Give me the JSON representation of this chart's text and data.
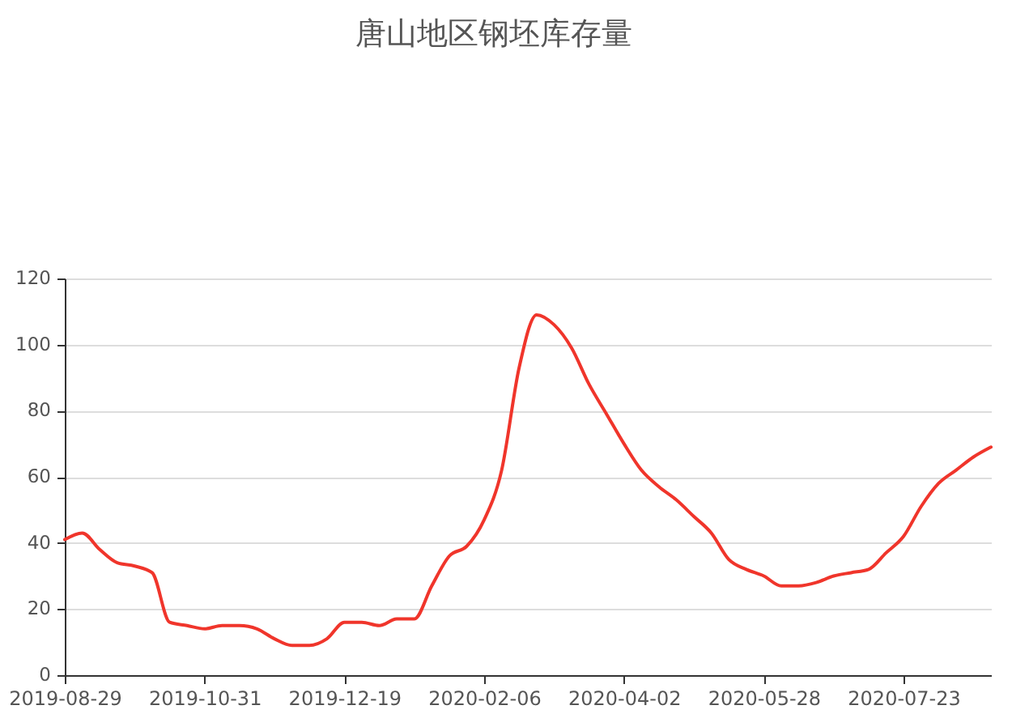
{
  "chart_data": {
    "type": "line",
    "title": "唐山地区钢坯库存量",
    "categories": [
      "2019-08-29",
      null,
      null,
      null,
      null,
      null,
      null,
      null,
      "2019-10-31",
      null,
      null,
      null,
      null,
      null,
      null,
      null,
      "2019-12-19",
      null,
      null,
      null,
      null,
      null,
      null,
      null,
      "2020-02-06",
      null,
      null,
      null,
      null,
      null,
      null,
      null,
      "2020-04-02",
      null,
      null,
      null,
      null,
      null,
      null,
      null,
      "2020-05-28",
      null,
      null,
      null,
      null,
      null,
      null,
      null,
      "2020-07-23",
      null,
      null,
      null,
      null,
      null
    ],
    "series": [
      {
        "color": "#f0352b",
        "values": [
          41,
          43,
          38,
          34,
          33,
          31,
          16,
          15,
          14,
          15,
          15,
          14,
          11,
          9,
          9,
          11,
          16,
          16,
          15,
          17,
          17,
          27,
          36,
          39,
          47,
          62,
          93,
          109,
          106,
          99,
          88,
          79,
          70,
          62,
          57,
          53,
          48,
          43,
          35,
          32,
          30,
          27,
          27,
          28,
          30,
          31,
          32,
          37,
          42,
          51,
          58,
          62,
          66,
          69
        ]
      }
    ],
    "ylim": [
      0,
      120
    ],
    "yticks": [
      0,
      20,
      40,
      60,
      80,
      100,
      120
    ],
    "grid": "y"
  }
}
